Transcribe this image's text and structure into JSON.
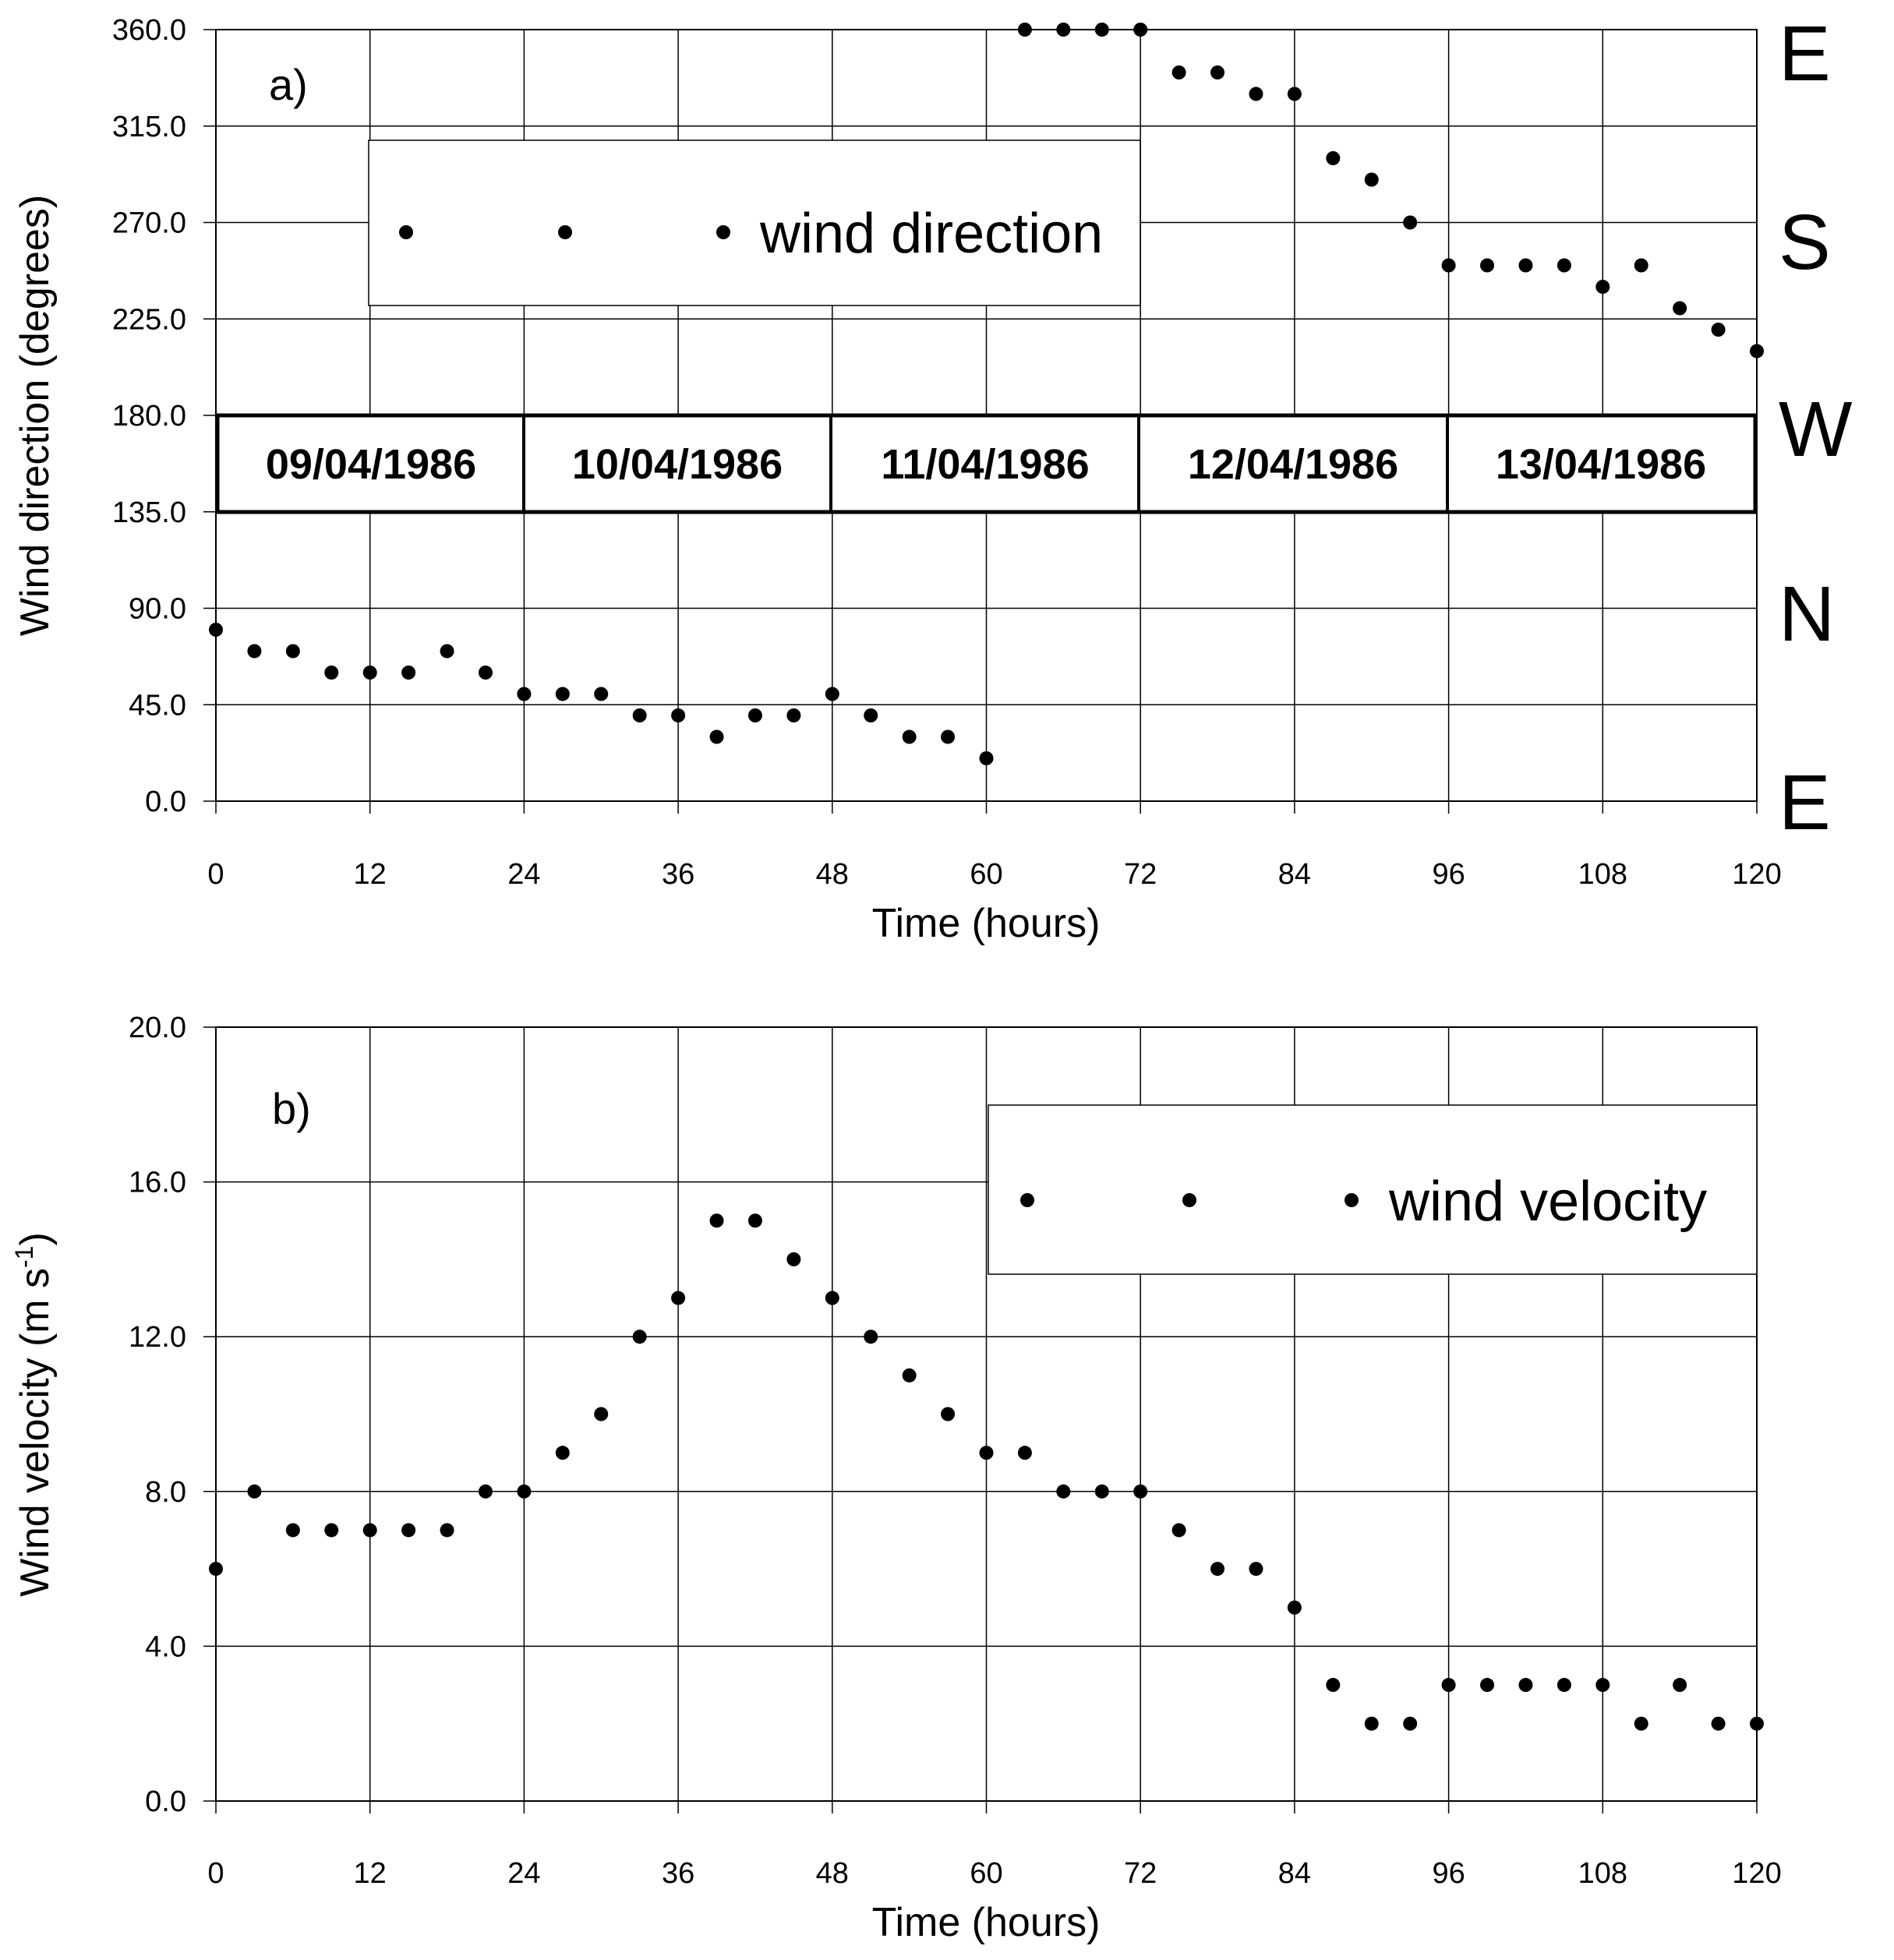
{
  "chart_data": [
    {
      "type": "scatter",
      "panel_label": "a)",
      "xlabel": "Time (hours)",
      "ylabel": "Wind direction (degrees)",
      "xlim": [
        0,
        120
      ],
      "ylim": [
        0,
        360
      ],
      "xticks": [
        0,
        12,
        24,
        36,
        48,
        60,
        72,
        84,
        96,
        108,
        120
      ],
      "ytick_labels": [
        "0.0",
        "45.0",
        "90.0",
        "135.0",
        "180.0",
        "225.0",
        "270.0",
        "315.0",
        "360.0"
      ],
      "grid": true,
      "legend": "wind direction",
      "series": [
        {
          "name": "wind direction",
          "x": [
            0,
            3,
            6,
            9,
            12,
            15,
            18,
            21,
            24,
            27,
            30,
            33,
            36,
            39,
            42,
            45,
            48,
            51,
            54,
            57,
            60,
            63,
            66,
            69,
            72,
            75,
            78,
            81,
            84,
            87,
            90,
            93,
            96,
            99,
            102,
            105,
            108,
            111,
            114,
            117,
            120
          ],
          "y": [
            80,
            70,
            70,
            60,
            60,
            60,
            70,
            60,
            50,
            50,
            50,
            40,
            40,
            30,
            40,
            40,
            50,
            40,
            30,
            30,
            20,
            360,
            360,
            360,
            360,
            340,
            340,
            330,
            330,
            300,
            290,
            270,
            250,
            250,
            250,
            250,
            240,
            250,
            230,
            220,
            210
          ]
        }
      ],
      "dates": [
        "09/04/1986",
        "10/04/1986",
        "11/04/1986",
        "12/04/1986",
        "13/04/1986"
      ],
      "compass_labels": [
        "E",
        "S",
        "W",
        "N",
        "E"
      ]
    },
    {
      "type": "scatter",
      "panel_label": "b)",
      "xlabel": "Time (hours)",
      "ylabel": "Wind velocity (m s",
      "ylabel_sup": "-1",
      "ylabel_end": ")",
      "xlim": [
        0,
        120
      ],
      "ylim": [
        0,
        20
      ],
      "xticks": [
        0,
        12,
        24,
        36,
        48,
        60,
        72,
        84,
        96,
        108,
        120
      ],
      "ytick_labels": [
        "0.0",
        "4.0",
        "8.0",
        "12.0",
        "16.0",
        "20.0"
      ],
      "grid": true,
      "legend": "wind velocity",
      "series": [
        {
          "name": "wind velocity",
          "x": [
            0,
            3,
            6,
            9,
            12,
            15,
            18,
            21,
            24,
            27,
            30,
            33,
            36,
            39,
            42,
            45,
            48,
            51,
            54,
            57,
            60,
            63,
            66,
            69,
            72,
            75,
            78,
            81,
            84,
            87,
            90,
            93,
            96,
            99,
            102,
            105,
            108,
            111,
            114,
            117,
            120
          ],
          "y": [
            6,
            8,
            7,
            7,
            7,
            7,
            7,
            8,
            8,
            9,
            10,
            12,
            13,
            15,
            15,
            14,
            13,
            12,
            11,
            10,
            9,
            9,
            8,
            8,
            8,
            7,
            6,
            6,
            5,
            3,
            2,
            2,
            3,
            3,
            3,
            3,
            3,
            2,
            3,
            2,
            2
          ]
        }
      ]
    }
  ]
}
